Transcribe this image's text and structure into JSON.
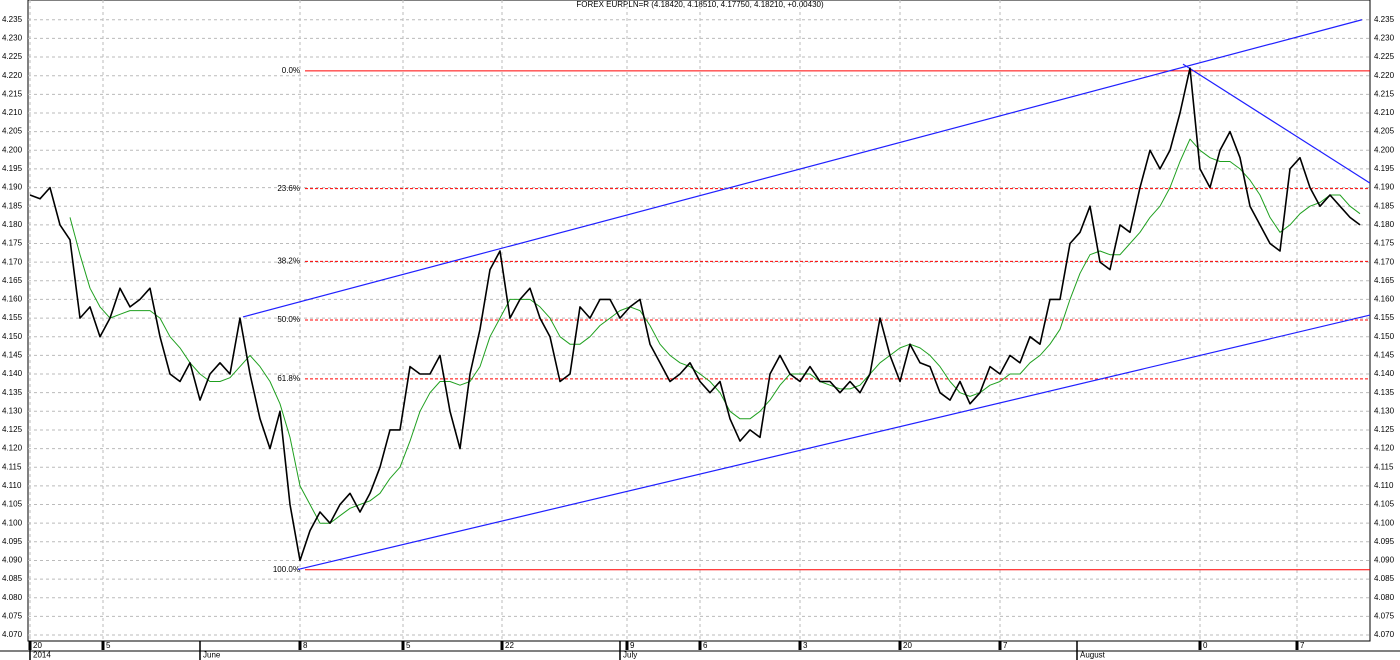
{
  "chart_data": {
    "type": "line",
    "title": "FOREX EURPLN=R (4.18420, 4.18510, 4.17750, 4.18210, +0.00430)",
    "x": [
      0.2,
      1.2,
      2.2,
      3.2,
      4.2,
      5.2,
      6.2,
      7.2,
      8.2,
      9.2,
      10.2,
      11.2,
      12.2,
      13.2,
      14.2,
      15.2,
      16.2,
      17.2,
      18.2,
      19.2,
      20.2,
      21.2,
      22.2,
      23.2,
      24.2,
      25.2,
      26.2,
      27.2,
      28.2,
      29.2,
      30.2,
      31.2,
      32.2,
      33.2,
      34.2,
      35.2,
      36.2,
      37.2,
      38.2,
      39.2,
      40.2,
      41.2,
      42.2,
      43.2,
      44.2,
      45.2,
      46.2,
      47.2,
      48.2,
      49.2,
      50.2,
      51.2,
      52.2,
      53.2,
      54.2,
      55.2,
      56.2,
      57.2,
      58.2,
      59.2,
      60.2,
      61.2,
      62.2,
      63.2,
      64.2,
      65.2,
      66.2,
      67.2,
      68.2,
      69.2,
      70.2,
      71.2,
      72.2,
      73.2,
      74.2,
      75.2,
      76.2,
      77.2,
      78.2,
      79.2,
      80.2,
      81.2,
      82.2,
      83.2,
      84.2,
      85.2,
      86.2,
      87.2,
      88.2,
      89.2,
      90.2,
      91.2,
      92.2,
      93.2,
      94.2,
      95.2,
      96.2,
      97.2,
      98.2,
      99.2,
      100.2,
      101.2,
      102.2,
      103.2,
      104.2,
      105.2,
      106.2,
      107.2,
      108.2,
      109.2,
      110.2,
      111.2,
      112.2,
      113.2,
      114.2,
      115.2,
      116.2,
      117.2,
      118.2,
      119.2,
      120.2,
      121.2,
      122.2,
      123.2,
      124.2,
      125.2,
      126.2,
      127.2,
      128.2,
      129.2,
      130.2,
      131.2,
      132.2,
      133.2
    ],
    "series": [
      {
        "color": "#000000",
        "values": [
          4.188,
          4.187,
          4.19,
          4.18,
          4.176,
          4.155,
          4.158,
          4.15,
          4.155,
          4.163,
          4.158,
          4.16,
          4.163,
          4.15,
          4.14,
          4.138,
          4.143,
          4.133,
          4.14,
          4.143,
          4.14,
          4.155,
          4.14,
          4.128,
          4.12,
          4.13,
          4.105,
          4.09,
          4.098,
          4.103,
          4.1,
          4.105,
          4.108,
          4.103,
          4.108,
          4.115,
          4.125,
          4.125,
          4.142,
          4.14,
          4.14,
          4.145,
          4.13,
          4.12,
          4.14,
          4.152,
          4.168,
          4.173,
          4.155,
          4.16,
          4.163,
          4.155,
          4.15,
          4.138,
          4.14,
          4.158,
          4.155,
          4.16,
          4.16,
          4.155,
          4.158,
          4.16,
          4.148,
          4.143,
          4.138,
          4.14,
          4.143,
          4.138,
          4.135,
          4.138,
          4.128,
          4.122,
          4.125,
          4.123,
          4.14,
          4.145,
          4.14,
          4.138,
          4.142,
          4.138,
          4.138,
          4.135,
          4.138,
          4.135,
          4.14,
          4.155,
          4.145,
          4.138,
          4.148,
          4.143,
          4.142,
          4.135,
          4.133,
          4.138,
          4.132,
          4.135,
          4.142,
          4.14,
          4.145,
          4.143,
          4.15,
          4.148,
          4.16,
          4.16,
          4.175,
          4.178,
          4.185,
          4.17,
          4.168,
          4.18,
          4.178,
          4.19,
          4.2,
          4.195,
          4.2,
          4.21,
          4.222,
          4.195,
          4.19,
          4.2,
          4.205,
          4.198,
          4.185,
          4.18,
          4.175,
          4.173,
          4.195,
          4.198,
          4.19,
          4.185,
          4.188,
          4.185,
          4.182,
          4.18
        ],
        "width": 1.6
      },
      {
        "color": "#20a020",
        "values": [
          null,
          null,
          null,
          null,
          4.182,
          4.172,
          4.163,
          4.158,
          4.155,
          4.156,
          4.157,
          4.157,
          4.157,
          4.155,
          4.15,
          4.147,
          4.143,
          4.14,
          4.138,
          4.138,
          4.139,
          4.142,
          4.145,
          4.142,
          4.138,
          4.132,
          4.123,
          4.11,
          4.105,
          4.1,
          4.1,
          4.102,
          4.104,
          4.105,
          4.106,
          4.108,
          4.112,
          4.115,
          4.122,
          4.13,
          4.135,
          4.138,
          4.138,
          4.137,
          4.138,
          4.142,
          4.15,
          4.155,
          4.16,
          4.16,
          4.16,
          4.158,
          4.155,
          4.15,
          4.148,
          4.148,
          4.15,
          4.153,
          4.155,
          4.157,
          4.158,
          4.157,
          4.153,
          4.148,
          4.145,
          4.143,
          4.142,
          4.14,
          4.138,
          4.135,
          4.13,
          4.128,
          4.128,
          4.13,
          4.133,
          4.137,
          4.14,
          4.14,
          4.14,
          4.138,
          4.137,
          4.136,
          4.136,
          4.137,
          4.14,
          4.143,
          4.145,
          4.147,
          4.148,
          4.147,
          4.145,
          4.142,
          4.138,
          4.135,
          4.134,
          4.135,
          4.137,
          4.138,
          4.14,
          4.14,
          4.143,
          4.145,
          4.148,
          4.152,
          4.16,
          4.167,
          4.172,
          4.173,
          4.172,
          4.172,
          4.175,
          4.178,
          4.182,
          4.185,
          4.19,
          4.197,
          4.203,
          4.2,
          4.198,
          4.197,
          4.197,
          4.195,
          4.192,
          4.188,
          4.182,
          4.178,
          4.18,
          4.183,
          4.185,
          4.186,
          4.188,
          4.188,
          4.185,
          4.183
        ],
        "width": 1
      }
    ],
    "xlim": [
      0,
      134.2
    ],
    "ylim": [
      4.0684,
      4.2403
    ],
    "xticks": [
      {
        "value": 0.2,
        "label": "20"
      },
      {
        "value": 7.5,
        "label": "5"
      },
      {
        "value": 27.2,
        "label": "8"
      },
      {
        "value": 37.5,
        "label": "5"
      },
      {
        "value": 47.4,
        "label": "22"
      },
      {
        "value": 59.9,
        "label": "9"
      },
      {
        "value": 67.2,
        "label": "6"
      },
      {
        "value": 77.2,
        "label": "3"
      },
      {
        "value": 87.2,
        "label": "20"
      },
      {
        "value": 97.2,
        "label": "7"
      },
      {
        "value": 117.2,
        "label": "0"
      },
      {
        "value": 126.9,
        "label": "7"
      }
    ],
    "month_ticks": [
      {
        "value": 0.2,
        "label": "2014"
      },
      {
        "value": 17.2,
        "label": "June"
      },
      {
        "value": 59.2,
        "label": "July"
      },
      {
        "value": 104.9,
        "label": "August"
      }
    ],
    "yticks": [
      {
        "value": 4.07,
        "label": "4.070"
      },
      4.075,
      {
        "value": 4.08,
        "label": "4.080"
      },
      4.085,
      {
        "value": 4.09,
        "label": "4.090"
      },
      4.095,
      {
        "value": 4.1,
        "label": "4.100"
      },
      4.105,
      {
        "value": 4.11,
        "label": "4.110"
      },
      4.115,
      {
        "value": 4.12,
        "label": "4.120"
      },
      4.125,
      {
        "value": 4.13,
        "label": "4.130"
      },
      4.135,
      {
        "value": 4.14,
        "label": "4.140"
      },
      4.145,
      {
        "value": 4.15,
        "label": "4.150"
      },
      4.155,
      {
        "value": 4.16,
        "label": "4.160"
      },
      4.165,
      {
        "value": 4.17,
        "label": "4.170"
      },
      4.175,
      {
        "value": 4.18,
        "label": "4.180"
      },
      4.185,
      {
        "value": 4.19,
        "label": "4.190"
      },
      4.195,
      {
        "value": 4.2,
        "label": "4.200"
      },
      4.205,
      {
        "value": 4.21,
        "label": "4.210"
      },
      4.215,
      {
        "value": 4.22,
        "label": "4.220"
      },
      4.225,
      {
        "value": 4.23,
        "label": "4.230"
      },
      4.235
    ],
    "grid": true,
    "fib_start_x": 27.7,
    "fib_color": "#ff0000",
    "fib_levels": [
      {
        "value": 4.2213,
        "label": "0.0%",
        "dashed": false
      },
      {
        "value": 4.1897,
        "label": "23.6%",
        "dashed": true
      },
      {
        "value": 4.1702,
        "label": "38.2%",
        "dashed": true
      },
      {
        "value": 4.1545,
        "label": "50.0%",
        "dashed": true
      },
      {
        "value": 4.1387,
        "label": "61.8%",
        "dashed": true
      },
      {
        "value": 4.0875,
        "label": "100.0%",
        "dashed": false
      }
    ],
    "trend_lines": [
      {
        "color": "#2020ff",
        "x": [
          21.5,
          133.4
        ],
        "y": [
          4.1553,
          4.235
        ]
      },
      {
        "color": "#2020ff",
        "x": [
          27.0,
          134.2
        ],
        "y": [
          4.0876,
          4.1558
        ]
      },
      {
        "color": "#2020ff",
        "x": [
          115.5,
          134.2
        ],
        "y": [
          4.2231,
          4.1912
        ]
      }
    ]
  }
}
